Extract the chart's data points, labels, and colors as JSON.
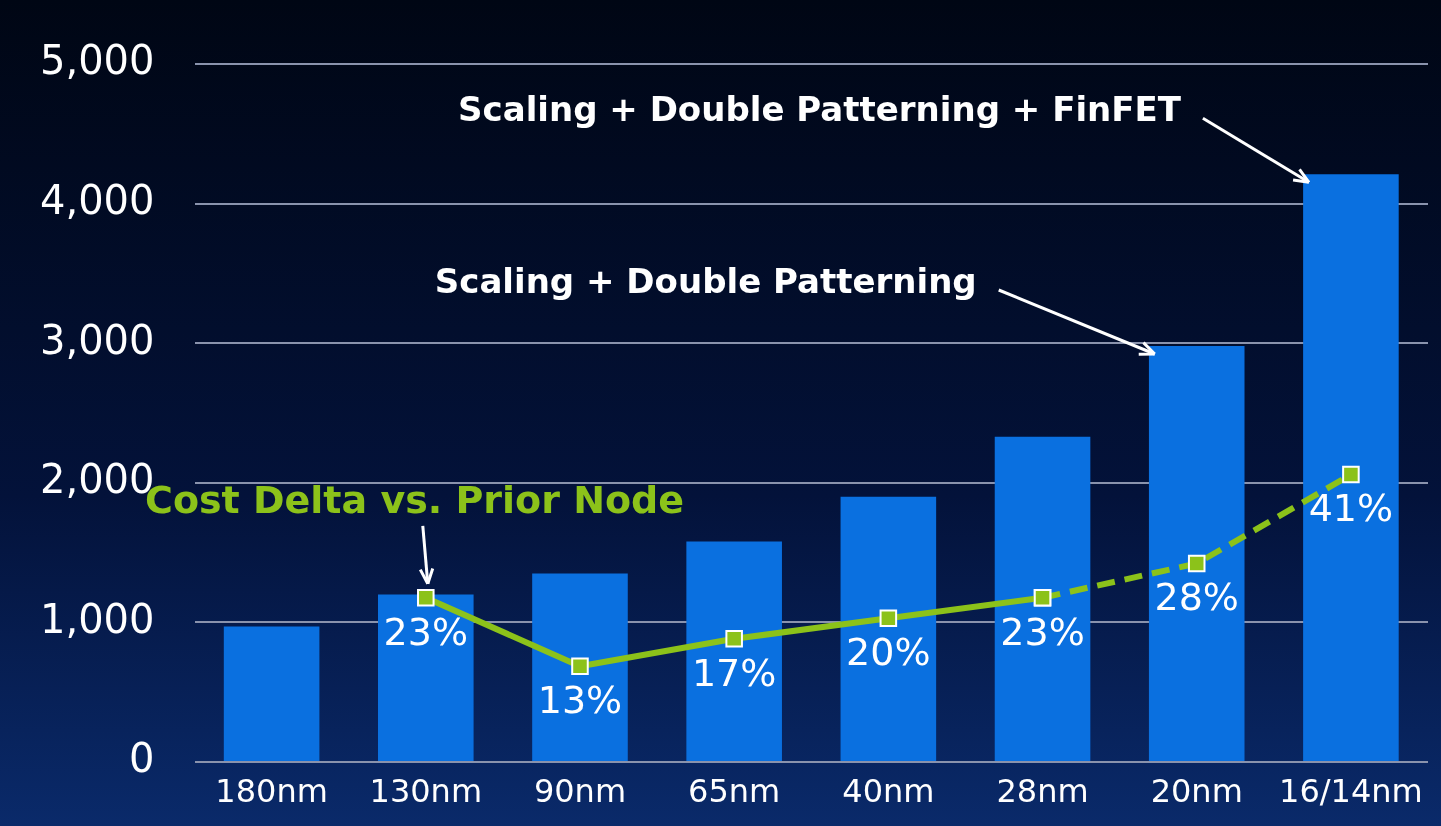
{
  "chart_data": {
    "type": "bar",
    "categories": [
      "180nm",
      "130nm",
      "90nm",
      "65nm",
      "40nm",
      "28nm",
      "20nm",
      "16/14nm"
    ],
    "series": [
      {
        "color": "#0a70e0",
        "values": [
          970,
          1200,
          1350,
          1580,
          1900,
          2330,
          2980,
          4210
        ]
      },
      {
        "type": "line",
        "axis": "y2",
        "name": "Cost Delta vs. Prior Node",
        "color": "#8cc21a",
        "line_style": "solid",
        "values": [
          null,
          23,
          13,
          17,
          20,
          23,
          null,
          null
        ],
        "value_labels": [
          null,
          "23%",
          "13%",
          "17%",
          "20%",
          "23%",
          null,
          null
        ]
      },
      {
        "type": "line",
        "axis": "y2",
        "color": "#8cc21a",
        "line_style": "dashed",
        "values": [
          null,
          null,
          null,
          null,
          null,
          23,
          28,
          41
        ],
        "value_labels": [
          null,
          null,
          null,
          null,
          null,
          null,
          "28%",
          "41%"
        ]
      }
    ],
    "y2lim": [
      -1,
      101
    ],
    "marker": "square",
    "grid": "y",
    "legend": false,
    "ylim": [
      0,
      5000
    ],
    "yticks": [
      0,
      {
        "value": 1000,
        "label": "1,000"
      },
      {
        "value": 2000,
        "label": "2,000"
      },
      {
        "value": 3000,
        "label": "3,000"
      },
      {
        "value": 4000,
        "label": "4,000"
      },
      {
        "value": 5000,
        "label": "5,000"
      }
    ],
    "annotations": [
      "Scaling + Double Patterning",
      "Scaling + Double Patterning + FinFET"
    ]
  }
}
